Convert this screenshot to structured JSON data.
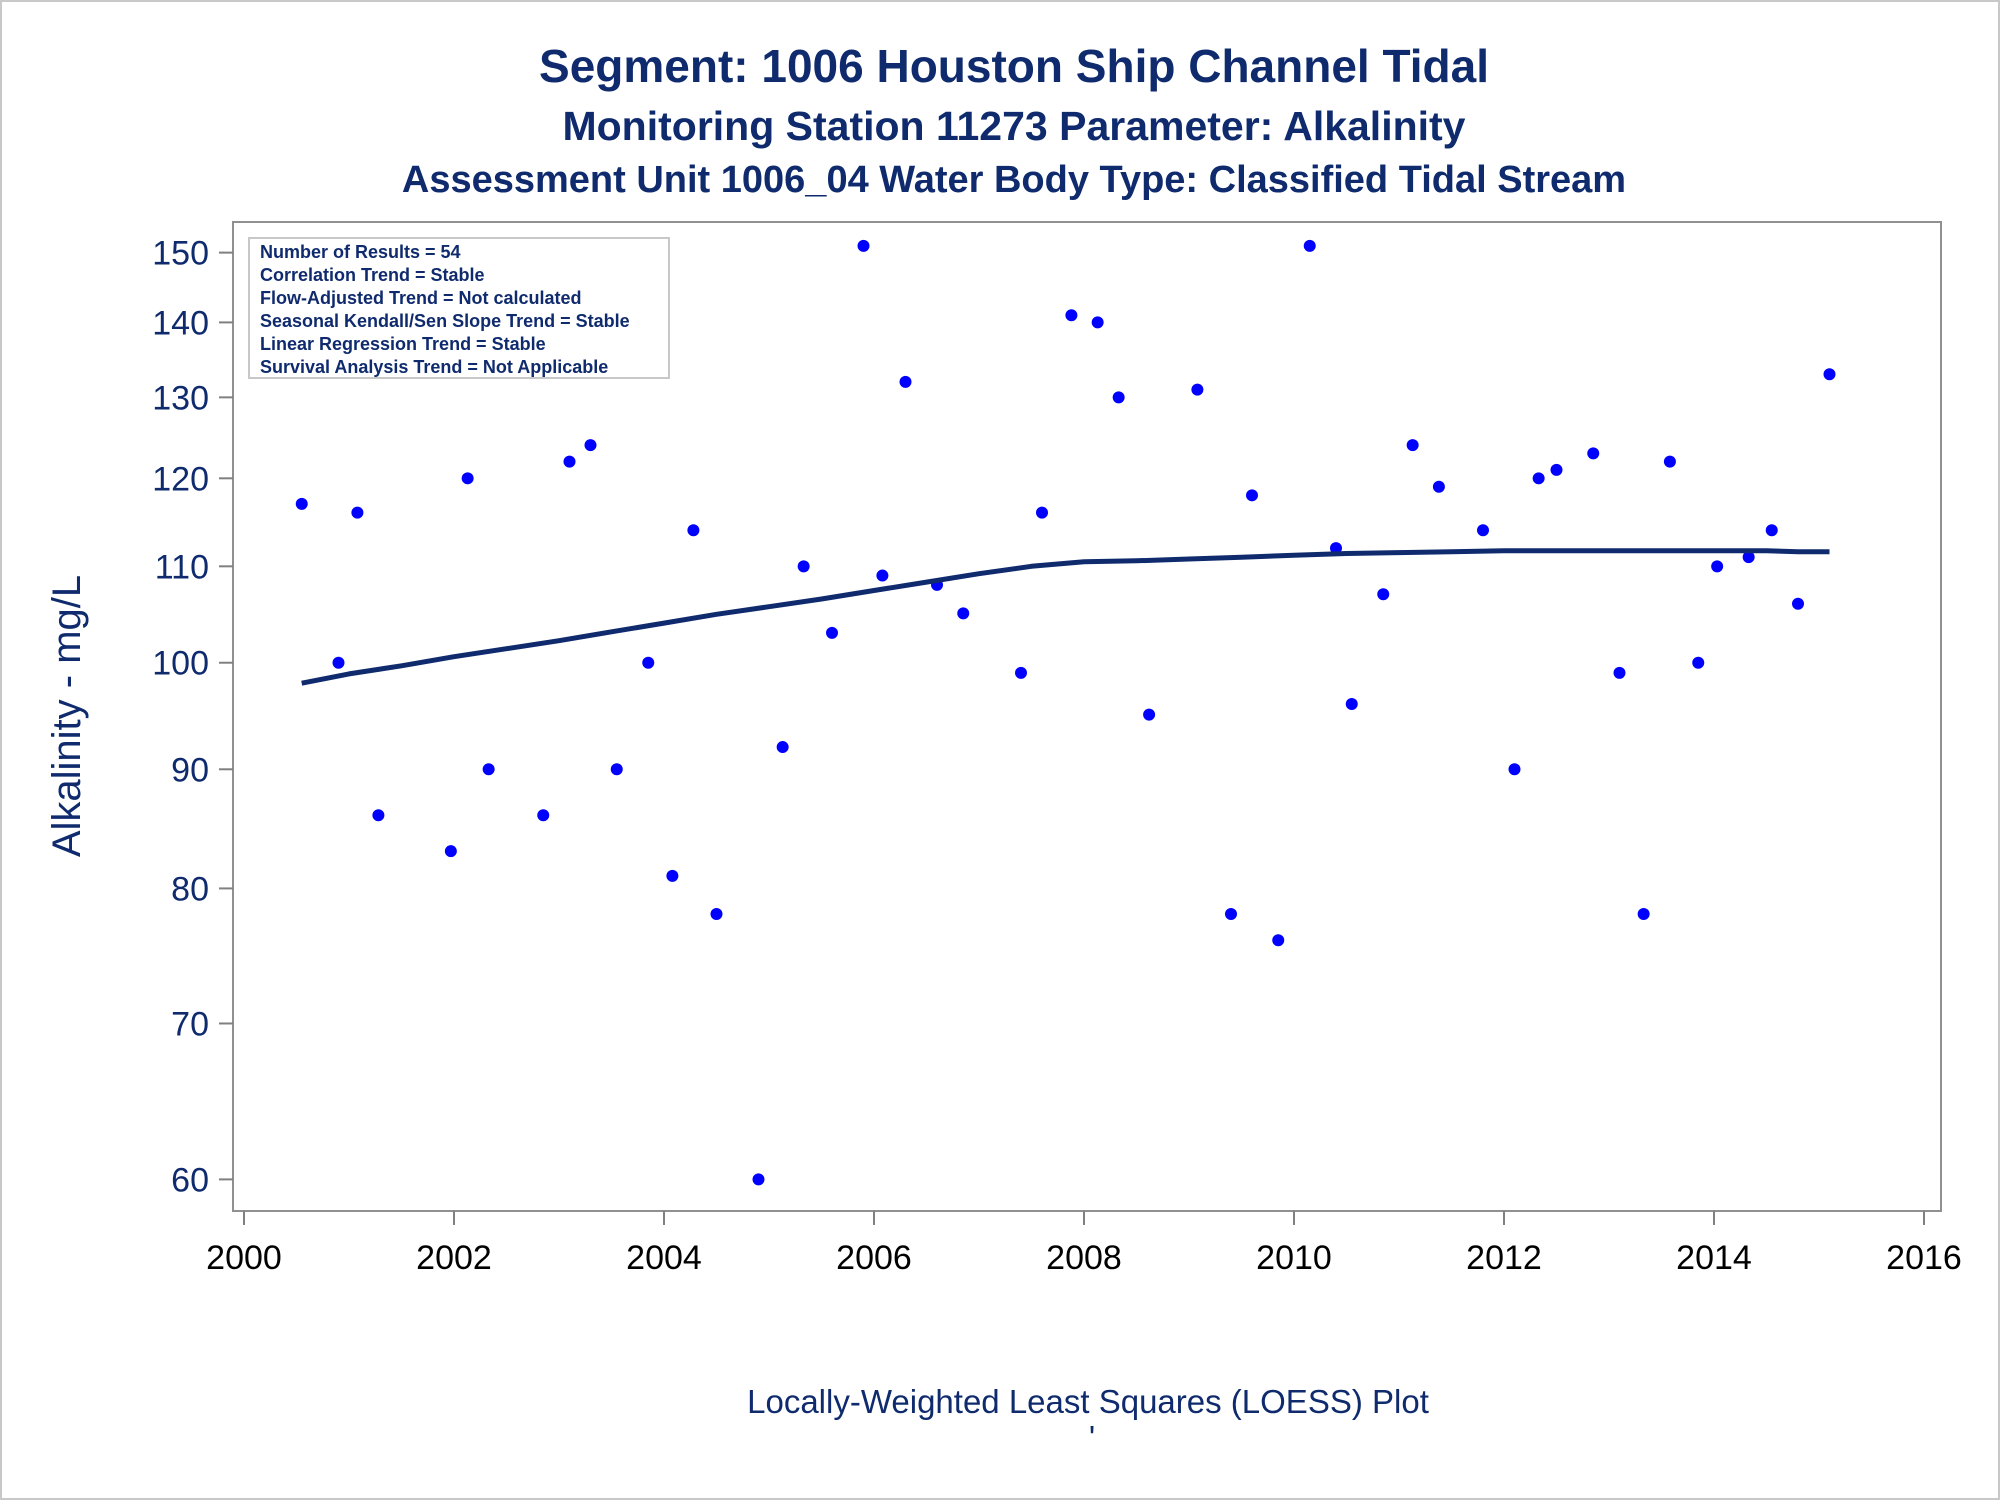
{
  "titles": {
    "line1": "Segment: 1006  Houston Ship Channel Tidal",
    "line2": "Monitoring Station 11273 Parameter: Alkalinity",
    "line3": "Assessment Unit 1006_04   Water Body Type: Classified Tidal Stream"
  },
  "stats_box": [
    "Number of Results = 54",
    "Correlation Trend = Stable",
    "Flow-Adjusted Trend = Not calculated",
    "Seasonal Kendall/Sen Slope Trend = Stable",
    "Linear Regression Trend = Stable",
    "Survival Analysis Trend = Not Applicable"
  ],
  "footnote": "Locally-Weighted Least Squares (LOESS) Plot",
  "footnote_mark": "'",
  "chart_data": {
    "type": "scatter",
    "ylabel": "Alkalinity - mg/L",
    "xlabel": "",
    "xlim": [
      2000,
      2016
    ],
    "ylim": [
      58.5,
      154
    ],
    "y_scale": "log",
    "x_ticks": [
      2000,
      2002,
      2004,
      2006,
      2008,
      2010,
      2012,
      2014,
      2016
    ],
    "y_ticks": [
      60,
      70,
      80,
      90,
      100,
      110,
      120,
      130,
      140,
      150
    ],
    "grid": false,
    "colors": {
      "points": "#0000ff",
      "loess": "#0f2b6e",
      "text": "#0f2b6e"
    },
    "series": [
      {
        "type": "scatter",
        "x": [
          2000.55,
          2000.9,
          2001.08,
          2001.28,
          2001.97,
          2002.13,
          2002.33,
          2002.85,
          2003.1,
          2003.3,
          2003.55,
          2003.85,
          2004.08,
          2004.28,
          2004.5,
          2004.9,
          2005.13,
          2005.33,
          2005.6,
          2005.9,
          2006.08,
          2006.3,
          2006.6,
          2006.85,
          2007.4,
          2007.6,
          2007.88,
          2008.13,
          2008.33,
          2008.62,
          2009.08,
          2009.4,
          2009.6,
          2009.85,
          2010.15,
          2010.4,
          2010.55,
          2010.85,
          2011.13,
          2011.38,
          2011.8,
          2012.1,
          2012.33,
          2012.5,
          2012.85,
          2013.1,
          2013.33,
          2013.58,
          2013.85,
          2014.03,
          2014.33,
          2014.55,
          2014.8,
          2015.1
        ],
        "y": [
          117,
          100,
          116,
          86,
          83,
          120,
          90,
          86,
          122,
          124,
          90,
          100,
          81,
          114,
          78,
          60,
          92,
          110,
          103,
          151,
          109,
          132,
          108,
          105,
          99,
          116,
          141,
          140,
          130,
          95,
          131,
          78,
          118,
          76,
          151,
          112,
          96,
          107,
          124,
          119,
          114,
          90,
          120,
          121,
          123,
          99,
          78,
          122,
          100,
          110,
          111,
          114,
          106,
          133
        ]
      },
      {
        "type": "line",
        "name": "LOESS",
        "x": [
          2000.55,
          2001,
          2001.5,
          2002,
          2002.5,
          2003,
          2003.5,
          2004,
          2004.5,
          2005,
          2005.5,
          2006,
          2006.5,
          2007,
          2007.5,
          2008,
          2008.5,
          2009,
          2009.5,
          2010,
          2010.5,
          2011,
          2011.5,
          2012,
          2012.5,
          2013,
          2013.5,
          2014,
          2014.5,
          2014.8,
          2015.1
        ],
        "y": [
          98,
          98.9,
          99.7,
          100.6,
          101.4,
          102.2,
          103.1,
          104,
          104.9,
          105.7,
          106.5,
          107.4,
          108.3,
          109.2,
          110,
          110.5,
          110.6,
          110.8,
          111,
          111.2,
          111.4,
          111.5,
          111.6,
          111.7,
          111.7,
          111.7,
          111.7,
          111.7,
          111.7,
          111.6,
          111.6
        ]
      }
    ]
  }
}
